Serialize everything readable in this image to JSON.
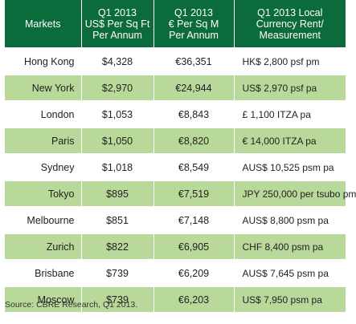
{
  "header": {
    "markets": "Markets",
    "col_usd": [
      "Q1 2013",
      "US$ Per Sq Ft",
      "Per Annum"
    ],
    "col_eur": [
      "Q1 2013",
      "€ Per Sq M",
      "Per Annum"
    ],
    "col_local": [
      "Q1 2013 Local",
      "Currency Rent/",
      "Measurement"
    ]
  },
  "rows": [
    {
      "market": "Hong Kong",
      "usd": "$4,328",
      "eur": "€36,351",
      "local": "HK$ 2,800 psf pm"
    },
    {
      "market": "New York",
      "usd": "$2,970",
      "eur": "€24,944",
      "local": "US$ 2,970 psf pa"
    },
    {
      "market": "London",
      "usd": "$1,053",
      "eur": "€8,843",
      "local": "£ 1,100 ITZA pa"
    },
    {
      "market": "Paris",
      "usd": "$1,050",
      "eur": "€8,820",
      "local": "€ 14,000 ITZA pa"
    },
    {
      "market": "Sydney",
      "usd": "$1,018",
      "eur": "€8,549",
      "local": "AUS$ 10,525 psm pa"
    },
    {
      "market": "Tokyo",
      "usd": "$895",
      "eur": "€7,519",
      "local": "JPY 250,000 per tsubo pm"
    },
    {
      "market": "Melbourne",
      "usd": "$851",
      "eur": "€7,148",
      "local": "AUS$ 8,800 psm pa"
    },
    {
      "market": "Zurich",
      "usd": "$822",
      "eur": "€6,905",
      "local": "CHF 8,400 psm pa"
    },
    {
      "market": "Brisbane",
      "usd": "$739",
      "eur": "€6,209",
      "local": "AUS$ 7,645 psm pa"
    },
    {
      "market": "Moscow",
      "usd": "$739",
      "eur": "€6,203",
      "local": "US$ 7,950 psm pa"
    }
  ],
  "footer": {
    "source": "Source: CBRE Research, Q1 2013."
  },
  "colors": {
    "header_bg": "#0b6b3a",
    "stripe": "#b8d99a"
  }
}
